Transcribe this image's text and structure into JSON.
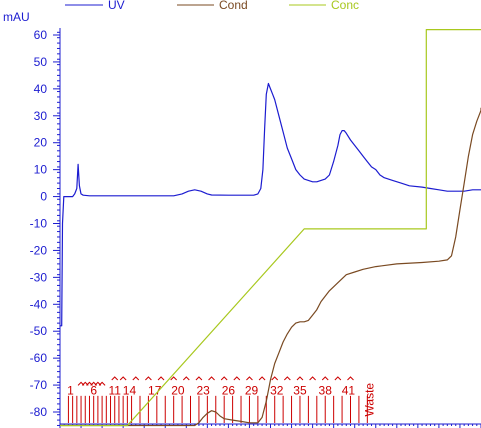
{
  "chart_data": {
    "type": "line",
    "ylabel": "mAU",
    "y_ticks": [
      60,
      50,
      40,
      30,
      20,
      10,
      0,
      -10,
      -20,
      -30,
      -40,
      -50,
      -60,
      -70,
      -80
    ],
    "ylim": [
      -85,
      63
    ],
    "x_range": [
      0,
      100
    ],
    "legend": [
      {
        "name": "UV",
        "color": "#1c1cd0"
      },
      {
        "name": "Cond",
        "color": "#7a4a22"
      },
      {
        "name": "Conc",
        "color": "#a8c81e"
      }
    ],
    "series": [
      {
        "name": "UV",
        "color": "#1c1cd0",
        "points": [
          [
            0.0,
            -48
          ],
          [
            0.4,
            -48
          ],
          [
            0.6,
            -10
          ],
          [
            0.9,
            0
          ],
          [
            2,
            0
          ],
          [
            3,
            0
          ],
          [
            3.5,
            1
          ],
          [
            4,
            3
          ],
          [
            4.3,
            12
          ],
          [
            4.6,
            4
          ],
          [
            5,
            1
          ],
          [
            5.5,
            0.5
          ],
          [
            7,
            0.3
          ],
          [
            15,
            0.3
          ],
          [
            22,
            0.3
          ],
          [
            27,
            0.3
          ],
          [
            29,
            1
          ],
          [
            30.5,
            2
          ],
          [
            32,
            2.5
          ],
          [
            33.5,
            2
          ],
          [
            35,
            1
          ],
          [
            36,
            0.6
          ],
          [
            40,
            0.5
          ],
          [
            46,
            0.5
          ],
          [
            47,
            1
          ],
          [
            47.7,
            3
          ],
          [
            48.2,
            10
          ],
          [
            48.6,
            25
          ],
          [
            49,
            38
          ],
          [
            49.5,
            42
          ],
          [
            50,
            40
          ],
          [
            50.5,
            38
          ],
          [
            51,
            36
          ],
          [
            52,
            30
          ],
          [
            53,
            24
          ],
          [
            54,
            18
          ],
          [
            55,
            14
          ],
          [
            56,
            10
          ],
          [
            57,
            8
          ],
          [
            58,
            6.5
          ],
          [
            59,
            6
          ],
          [
            60,
            5.5
          ],
          [
            61,
            5.5
          ],
          [
            62,
            6
          ],
          [
            63,
            6.5
          ],
          [
            64,
            8
          ],
          [
            65,
            13
          ],
          [
            66,
            19
          ],
          [
            66.5,
            23
          ],
          [
            67,
            24.5
          ],
          [
            67.5,
            24.5
          ],
          [
            68,
            23.5
          ],
          [
            69,
            21
          ],
          [
            70,
            19
          ],
          [
            71,
            17
          ],
          [
            72,
            15
          ],
          [
            73,
            13
          ],
          [
            74,
            11
          ],
          [
            75,
            10
          ],
          [
            76,
            8
          ],
          [
            77,
            7
          ],
          [
            79,
            6
          ],
          [
            81,
            5
          ],
          [
            83,
            4
          ],
          [
            86,
            3.5
          ],
          [
            88,
            3
          ],
          [
            90,
            2.5
          ],
          [
            92,
            2
          ],
          [
            96,
            2
          ],
          [
            98,
            2.5
          ],
          [
            100,
            2.5
          ]
        ]
      },
      {
        "name": "Cond",
        "color": "#7a4a22",
        "points": [
          [
            0,
            -85
          ],
          [
            20,
            -85
          ],
          [
            30,
            -85
          ],
          [
            32,
            -85
          ],
          [
            33,
            -84
          ],
          [
            34,
            -82
          ],
          [
            35,
            -80.5
          ],
          [
            36,
            -79.5
          ],
          [
            37,
            -80
          ],
          [
            38,
            -81.5
          ],
          [
            39,
            -82.5
          ],
          [
            41,
            -83
          ],
          [
            43,
            -83.5
          ],
          [
            45,
            -84
          ],
          [
            47,
            -84
          ],
          [
            48,
            -82
          ],
          [
            49,
            -76
          ],
          [
            50,
            -68
          ],
          [
            51,
            -62
          ],
          [
            52,
            -58
          ],
          [
            53,
            -54
          ],
          [
            54,
            -51
          ],
          [
            55,
            -48.5
          ],
          [
            56,
            -47
          ],
          [
            57,
            -46.5
          ],
          [
            58,
            -46.5
          ],
          [
            59,
            -46
          ],
          [
            60,
            -44
          ],
          [
            61,
            -42
          ],
          [
            62,
            -39
          ],
          [
            64,
            -35
          ],
          [
            66,
            -32
          ],
          [
            68,
            -29
          ],
          [
            70,
            -28
          ],
          [
            72,
            -27
          ],
          [
            75,
            -26
          ],
          [
            80,
            -25
          ],
          [
            86,
            -24.5
          ],
          [
            90,
            -24
          ],
          [
            92,
            -23.5
          ],
          [
            93,
            -22
          ],
          [
            94,
            -15
          ],
          [
            95,
            -5
          ],
          [
            96,
            5
          ],
          [
            97,
            15
          ],
          [
            98,
            23
          ],
          [
            99,
            28
          ],
          [
            100,
            32
          ],
          [
            100,
            33
          ]
        ]
      },
      {
        "name": "Conc",
        "color": "#a8c81e",
        "points": [
          [
            0,
            -85
          ],
          [
            16,
            -85
          ],
          [
            58,
            -12
          ],
          [
            87,
            -12
          ],
          [
            87,
            62
          ],
          [
            100,
            62
          ]
        ]
      }
    ],
    "fraction_labels": [
      "1",
      "6",
      "11",
      "14",
      "17",
      "20",
      "23",
      "26",
      "29",
      "32",
      "35",
      "38",
      "41",
      "Waste"
    ],
    "fraction_label_x": [
      2.5,
      8,
      13,
      16.5,
      22.5,
      28,
      34,
      40,
      45.5,
      51.5,
      57,
      63,
      68.5,
      73.5
    ],
    "fraction_marks_x": [
      2,
      3,
      4,
      5,
      6,
      7,
      8,
      9,
      10,
      11,
      12,
      13,
      14,
      15,
      16,
      17,
      19,
      21,
      23,
      25,
      27,
      29,
      31,
      33,
      35,
      37,
      39,
      41,
      43,
      45,
      47,
      49,
      51,
      53,
      55,
      57,
      59,
      61,
      63,
      65,
      67,
      69,
      71,
      73
    ],
    "fraction_caret_x": [
      5,
      6,
      7,
      8,
      9,
      10,
      13,
      15,
      18,
      21,
      24,
      27,
      30,
      33,
      36,
      39,
      42,
      45,
      48,
      51,
      54,
      57,
      60,
      63,
      66,
      69
    ],
    "fraction_caret_y": [
      -69,
      -69,
      -69,
      -69,
      -69,
      -69,
      -67,
      -67,
      -67,
      -67,
      -67,
      -67,
      -67,
      -67,
      -67,
      -67,
      -67,
      -67,
      -67,
      -67,
      -67,
      -67,
      -67,
      -67,
      -67,
      -67
    ]
  }
}
